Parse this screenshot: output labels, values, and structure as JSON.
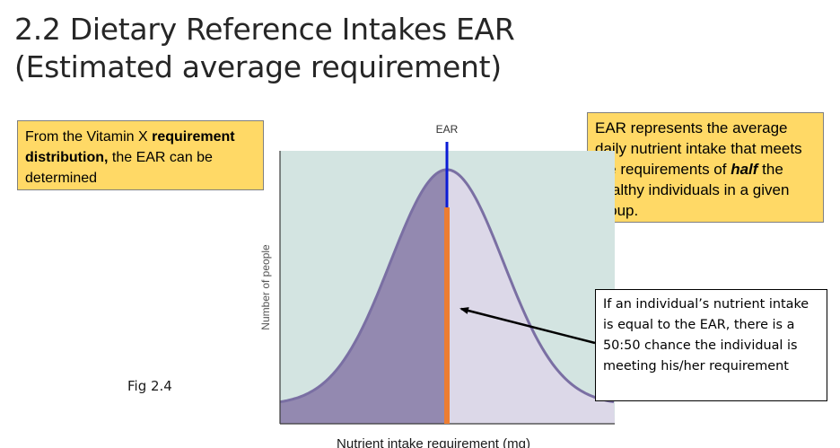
{
  "slide": {
    "title_line1": "2.2 Dietary Reference Intakes EAR",
    "title_line2": "(Estimated average requirement)",
    "fig_label": "Fig 2.4"
  },
  "callout_left": {
    "text1": "From the Vitamin X ",
    "bold": "requirement distribution,",
    "text2": " the EAR can be determined"
  },
  "callout_right": {
    "text1": "EAR represents the average daily nutrient intake that meets the requirements of ",
    "bold_italic": "half",
    "text2": " the healthy individuals in a given group."
  },
  "note_box": {
    "text": "If an individual’s nutrient intake is equal to the EAR, there is a 50:50 chance the individual is meeting his/her requirement"
  },
  "chart_data": {
    "type": "area",
    "xlabel": "Nutrient intake requirement (mg)",
    "ylabel": "Number of people",
    "marker_label": "EAR",
    "distribution": "normal",
    "colors": {
      "background": "#d3e4e1",
      "below_ear": "#9389b0",
      "above_ear": "#dcd8e8",
      "curve": "#7a6fa3",
      "ear_line_top": "#0b1cd6",
      "ear_line_bottom": "#ed7d31",
      "arrow": "#000000"
    }
  }
}
